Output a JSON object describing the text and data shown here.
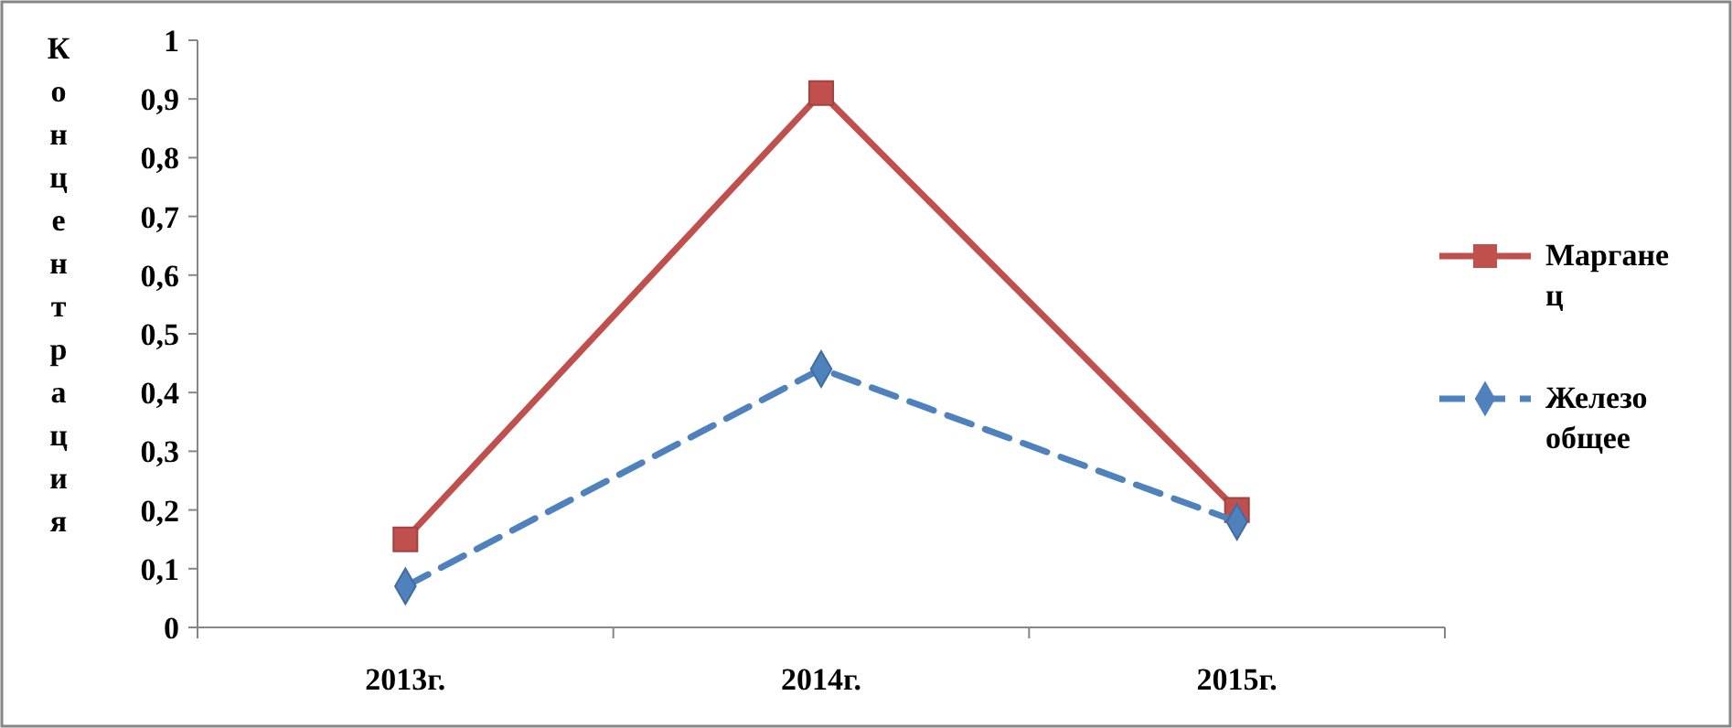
{
  "chart_data": {
    "type": "line",
    "ylabel": "Концентрация",
    "categories": [
      "2013г.",
      "2014г.",
      "2015г."
    ],
    "ylim": [
      0,
      1
    ],
    "yticks": [
      0,
      {
        "value": 0.1,
        "label": "0,1"
      },
      {
        "value": 0.2,
        "label": "0,2"
      },
      {
        "value": 0.3,
        "label": "0,3"
      },
      {
        "value": 0.4,
        "label": "0,4"
      },
      {
        "value": 0.5,
        "label": "0,5"
      },
      {
        "value": 0.6,
        "label": "0,6"
      },
      {
        "value": 0.7,
        "label": "0,7"
      },
      {
        "value": 0.8,
        "label": "0,8"
      },
      {
        "value": 0.9,
        "label": "0,9"
      },
      1
    ],
    "legend": "right",
    "series": [
      {
        "name": "Марганец",
        "color": "#c0504d",
        "marker": "square",
        "line_style": "solid",
        "values": [
          0.15,
          0.91,
          0.2
        ]
      },
      {
        "name": "Железо общее",
        "color": "#4f81bd",
        "marker": "diamond",
        "line_style": "dashed",
        "values": [
          0.07,
          0.44,
          0.18
        ]
      }
    ]
  }
}
